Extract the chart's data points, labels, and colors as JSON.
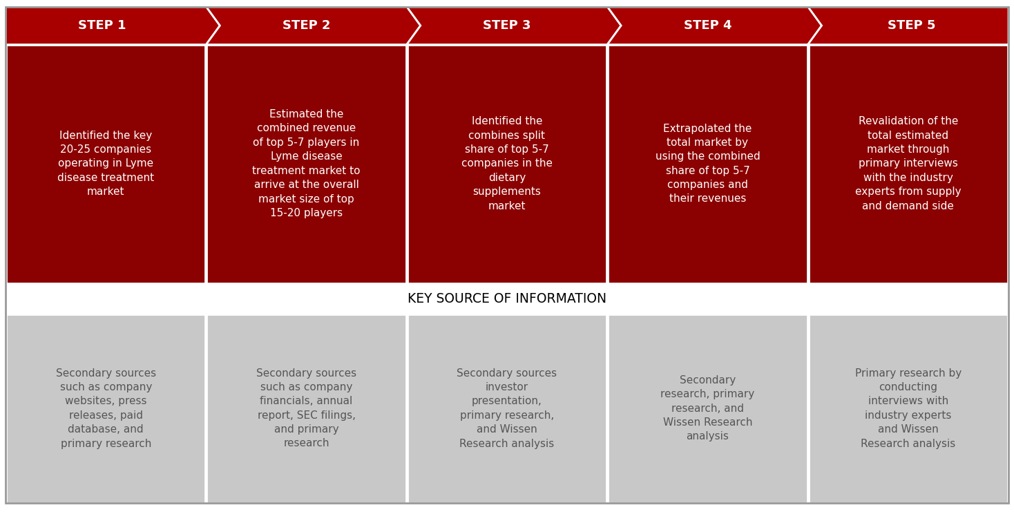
{
  "steps": [
    "STEP 1",
    "STEP 2",
    "STEP 3",
    "STEP 4",
    "STEP 5"
  ],
  "step_descriptions": [
    "Identified the key\n20-25 companies\noperating in Lyme\ndisease treatment\nmarket",
    "Estimated the\ncombined revenue\nof top 5-7 players in\nLyme disease\ntreatment market to\narrive at the overall\nmarket size of top\n15-20 players",
    "Identified the\ncombines split\nshare of top 5-7\ncompanies in the\ndietary\nsupplements\nmarket",
    "Extrapolated the\ntotal market by\nusing the combined\nshare of top 5-7\ncompanies and\ntheir revenues",
    "Revalidation of the\ntotal estimated\nmarket through\nprimary interviews\nwith the industry\nexperts from supply\nand demand side"
  ],
  "key_sources": [
    "Secondary sources\nsuch as company\nwebsites, press\nreleases, paid\ndatabase, and\nprimary research",
    "Secondary sources\nsuch as company\nfinancials, annual\nreport, SEC filings,\nand primary\nresearch",
    "Secondary sources\ninvestor\npresentation,\nprimary research,\nand Wissen\nResearch analysis",
    "Secondary\nresearch, primary\nresearch, and\nWissen Research\nanalysis",
    "Primary research by\nconducting\ninterviews with\nindustry experts\nand Wissen\nResearch analysis"
  ],
  "header_red": "#A80000",
  "mid_red": "#8B0000",
  "gray_color": "#C8C8C8",
  "white": "#FFFFFF",
  "bg_color": "#FFFFFF",
  "border_color": "#999999",
  "text_gray": "#555555",
  "key_source_label": "KEY SOURCE OF INFORMATION",
  "key_source_fontsize": 13.5,
  "step_label_fontsize": 13,
  "desc_fontsize": 11,
  "source_fontsize": 11
}
